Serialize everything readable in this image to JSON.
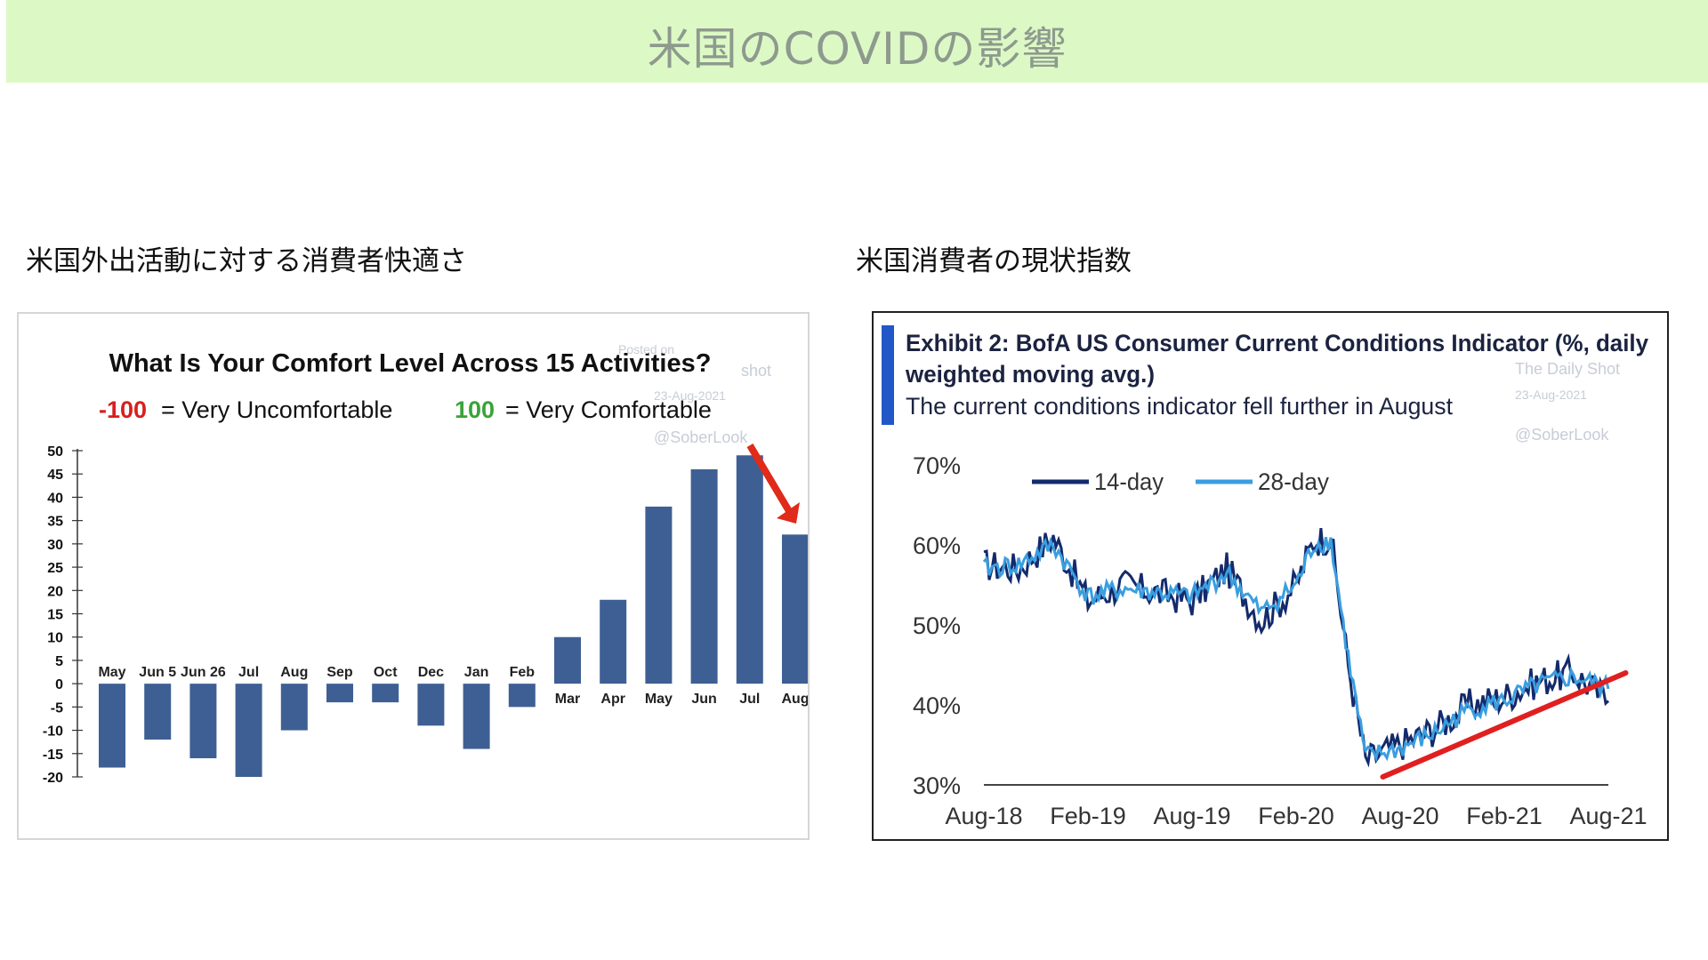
{
  "header": {
    "title": "米国のCOVIDの影響"
  },
  "left_label": "米国外出活動に対する消費者快適さ",
  "right_label": "米国消費者の現状指数",
  "left_chart": {
    "title": "What Is Your Comfort Level Across 15 Activities?",
    "legend_neg_value": "-100",
    "legend_neg_text": "= Very Uncomfortable",
    "legend_pos_value": "100",
    "legend_pos_text": "= Very Comfortable",
    "watermark_line1": "Posted on",
    "watermark_line2": "shot",
    "watermark_date": "23-Aug-2021",
    "watermark_handle": "@SoberLook"
  },
  "right_chart": {
    "title_line1": "Exhibit 2: BofA US Consumer Current Conditions Indicator (%, daily",
    "title_line2": "weighted moving avg.)",
    "subtitle": "The current conditions indicator fell further in August",
    "watermark_name": "The Daily Shot",
    "watermark_date": "23-Aug-2021",
    "watermark_handle": "@SoberLook",
    "legend_14": "14-day",
    "legend_28": "28-day"
  },
  "chart_data": [
    {
      "type": "bar",
      "title": "What Is Your Comfort Level Across 15 Activities?",
      "categories": [
        "May",
        "Jun 5",
        "Jun 26",
        "Jul",
        "Aug",
        "Sep",
        "Oct",
        "Dec",
        "Jan",
        "Feb",
        "Mar",
        "Apr",
        "May",
        "Jun",
        "Jul",
        "Aug"
      ],
      "values": [
        -18,
        -12,
        -16,
        -20,
        -10,
        -4,
        -4,
        -9,
        -14,
        -5,
        10,
        18,
        38,
        46,
        49,
        32
      ],
      "ylim": [
        -20,
        50
      ],
      "yticks": [
        50,
        45,
        40,
        35,
        30,
        25,
        20,
        15,
        10,
        5,
        0,
        -5,
        -10,
        -15,
        -20
      ],
      "color": "#3e5f93",
      "annotation": "red arrow pointing down to the last bar"
    },
    {
      "type": "line",
      "title": "Exhibit 2: BofA US Consumer Current Conditions Indicator (%, daily weighted moving avg.)",
      "subtitle": "The current conditions indicator fell further in August",
      "x": [
        "Aug-18",
        "Oct-18",
        "Dec-18",
        "Feb-19",
        "Apr-19",
        "Jun-19",
        "Aug-19",
        "Oct-19",
        "Dec-19",
        "Feb-20",
        "Mar-20",
        "Apr-20",
        "May-20",
        "Jun-20",
        "Aug-20",
        "Oct-20",
        "Dec-20",
        "Feb-21",
        "Apr-21",
        "Jun-21",
        "Aug-21"
      ],
      "series": [
        {
          "name": "14-day",
          "color": "#132a6b",
          "values": [
            57.5,
            57.0,
            61.0,
            53.0,
            55.0,
            54.0,
            53.0,
            57.0,
            50.5,
            55.0,
            60.5,
            61.0,
            45.0,
            33.0,
            35.0,
            37.0,
            40.0,
            41.0,
            43.0,
            44.0,
            40.5
          ]
        },
        {
          "name": "28-day",
          "color": "#3a9ee0",
          "values": [
            57.0,
            57.5,
            60.0,
            53.5,
            54.5,
            54.0,
            53.5,
            56.5,
            51.5,
            55.0,
            60.0,
            60.5,
            46.0,
            33.5,
            34.5,
            36.5,
            39.5,
            40.5,
            42.5,
            43.5,
            42.0
          ]
        }
      ],
      "trendline": {
        "color": "#e02020",
        "from": [
          "Jul-20",
          31.0
        ],
        "to": [
          "Sep-21",
          44.0
        ]
      },
      "xticks": [
        "Aug-18",
        "Feb-19",
        "Aug-19",
        "Feb-20",
        "Aug-20",
        "Feb-21",
        "Aug-21"
      ],
      "yticks": [
        "70%",
        "60%",
        "50%",
        "40%",
        "30%"
      ],
      "ylim": [
        30,
        70
      ]
    }
  ]
}
